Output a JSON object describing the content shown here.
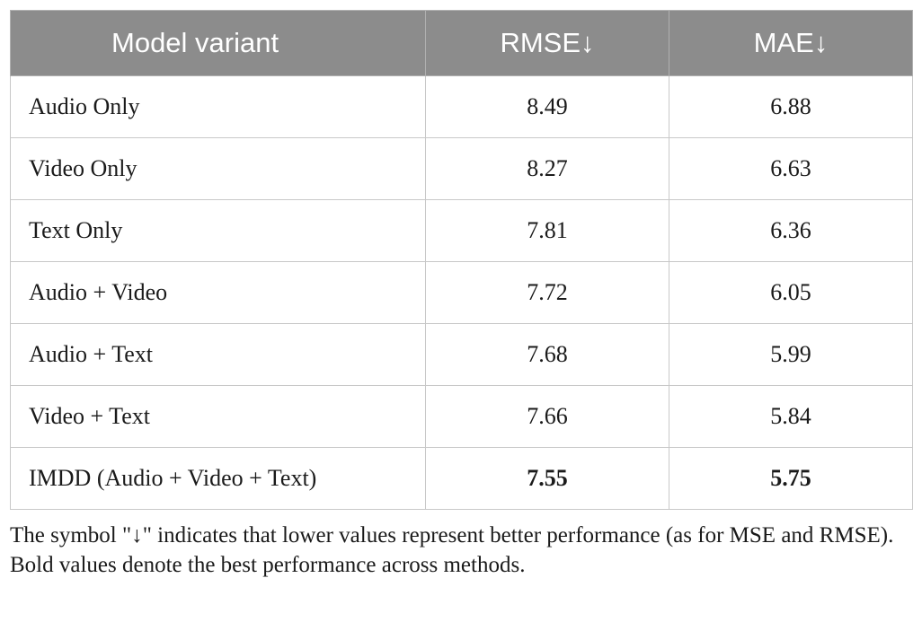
{
  "table": {
    "headers": [
      "Model variant",
      "RMSE↓",
      "MAE↓"
    ],
    "rows": [
      {
        "model": "Audio Only",
        "rmse": "8.49",
        "mae": "6.88",
        "bold": false
      },
      {
        "model": "Video Only",
        "rmse": "8.27",
        "mae": "6.63",
        "bold": false
      },
      {
        "model": "Text Only",
        "rmse": "7.81",
        "mae": "6.36",
        "bold": false
      },
      {
        "model": "Audio + Video",
        "rmse": "7.72",
        "mae": "6.05",
        "bold": false
      },
      {
        "model": "Audio + Text",
        "rmse": "7.68",
        "mae": "5.99",
        "bold": false
      },
      {
        "model": "Video + Text",
        "rmse": "7.66",
        "mae": "5.84",
        "bold": false
      },
      {
        "model": "IMDD (Audio + Video + Text)",
        "rmse": "7.55",
        "mae": "5.75",
        "bold": true
      }
    ],
    "header_bg": "#8c8c8c"
  },
  "notes": {
    "symbol_note": "The symbol \"↓\" indicates that lower values represent better performance (as for MSE and RMSE).",
    "bold_note": "Bold values denote the best performance across methods."
  }
}
